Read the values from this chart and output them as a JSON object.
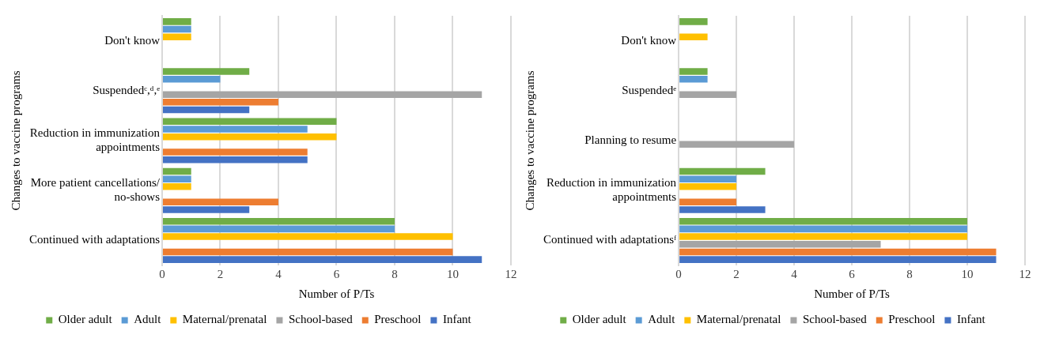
{
  "chart_data": [
    {
      "type": "bar",
      "orientation": "horizontal",
      "xlabel": "Number of P/Ts",
      "ylabel": "Changes to vaccine programs",
      "categories": [
        "Don't know",
        "Suspendedᶜ,ᵈ,ᵉ",
        "Reduction in immunization appointments",
        "More patient cancellations/ no-shows",
        "Continued with adaptations"
      ],
      "xlim": [
        0,
        12
      ],
      "xticks": [
        0,
        2,
        4,
        6,
        8,
        10,
        12
      ],
      "grid": "x",
      "legend": "bottom",
      "series": [
        {
          "name": "Older adult",
          "color": "#70ad47",
          "values": [
            1,
            3,
            6,
            1,
            8
          ]
        },
        {
          "name": "Adult",
          "color": "#5b9bd5",
          "values": [
            1,
            2,
            5,
            1,
            8
          ]
        },
        {
          "name": "Maternal/prenatal",
          "color": "#ffc000",
          "values": [
            1,
            null,
            6,
            1,
            10
          ]
        },
        {
          "name": "School-based",
          "color": "#a5a5a5",
          "values": [
            null,
            11,
            null,
            null,
            null
          ]
        },
        {
          "name": "Preschool",
          "color": "#ed7d31",
          "values": [
            null,
            4,
            5,
            4,
            10
          ]
        },
        {
          "name": "Infant",
          "color": "#4472c4",
          "values": [
            null,
            3,
            5,
            3,
            11
          ]
        }
      ]
    },
    {
      "type": "bar",
      "orientation": "horizontal",
      "xlabel": "Number of P/Ts",
      "ylabel": "Changes to vaccine programs",
      "categories": [
        "Don't know",
        "Suspendedᵉ",
        "Planning to resume",
        "Reduction in immunization appointments",
        "Continued with adaptationsᶠ"
      ],
      "xlim": [
        0,
        12
      ],
      "xticks": [
        0,
        2,
        4,
        6,
        8,
        10,
        12
      ],
      "grid": "x",
      "legend": "bottom",
      "series": [
        {
          "name": "Older adult",
          "color": "#70ad47",
          "values": [
            1,
            1,
            null,
            3,
            10
          ]
        },
        {
          "name": "Adult",
          "color": "#5b9bd5",
          "values": [
            null,
            1,
            null,
            2,
            10
          ]
        },
        {
          "name": "Maternal/prenatal",
          "color": "#ffc000",
          "values": [
            1,
            null,
            null,
            2,
            10
          ]
        },
        {
          "name": "School-based",
          "color": "#a5a5a5",
          "values": [
            null,
            2,
            4,
            null,
            7
          ]
        },
        {
          "name": "Preschool",
          "color": "#ed7d31",
          "values": [
            null,
            null,
            null,
            2,
            11
          ]
        },
        {
          "name": "Infant",
          "color": "#4472c4",
          "values": [
            null,
            null,
            null,
            3,
            11
          ]
        }
      ]
    }
  ]
}
